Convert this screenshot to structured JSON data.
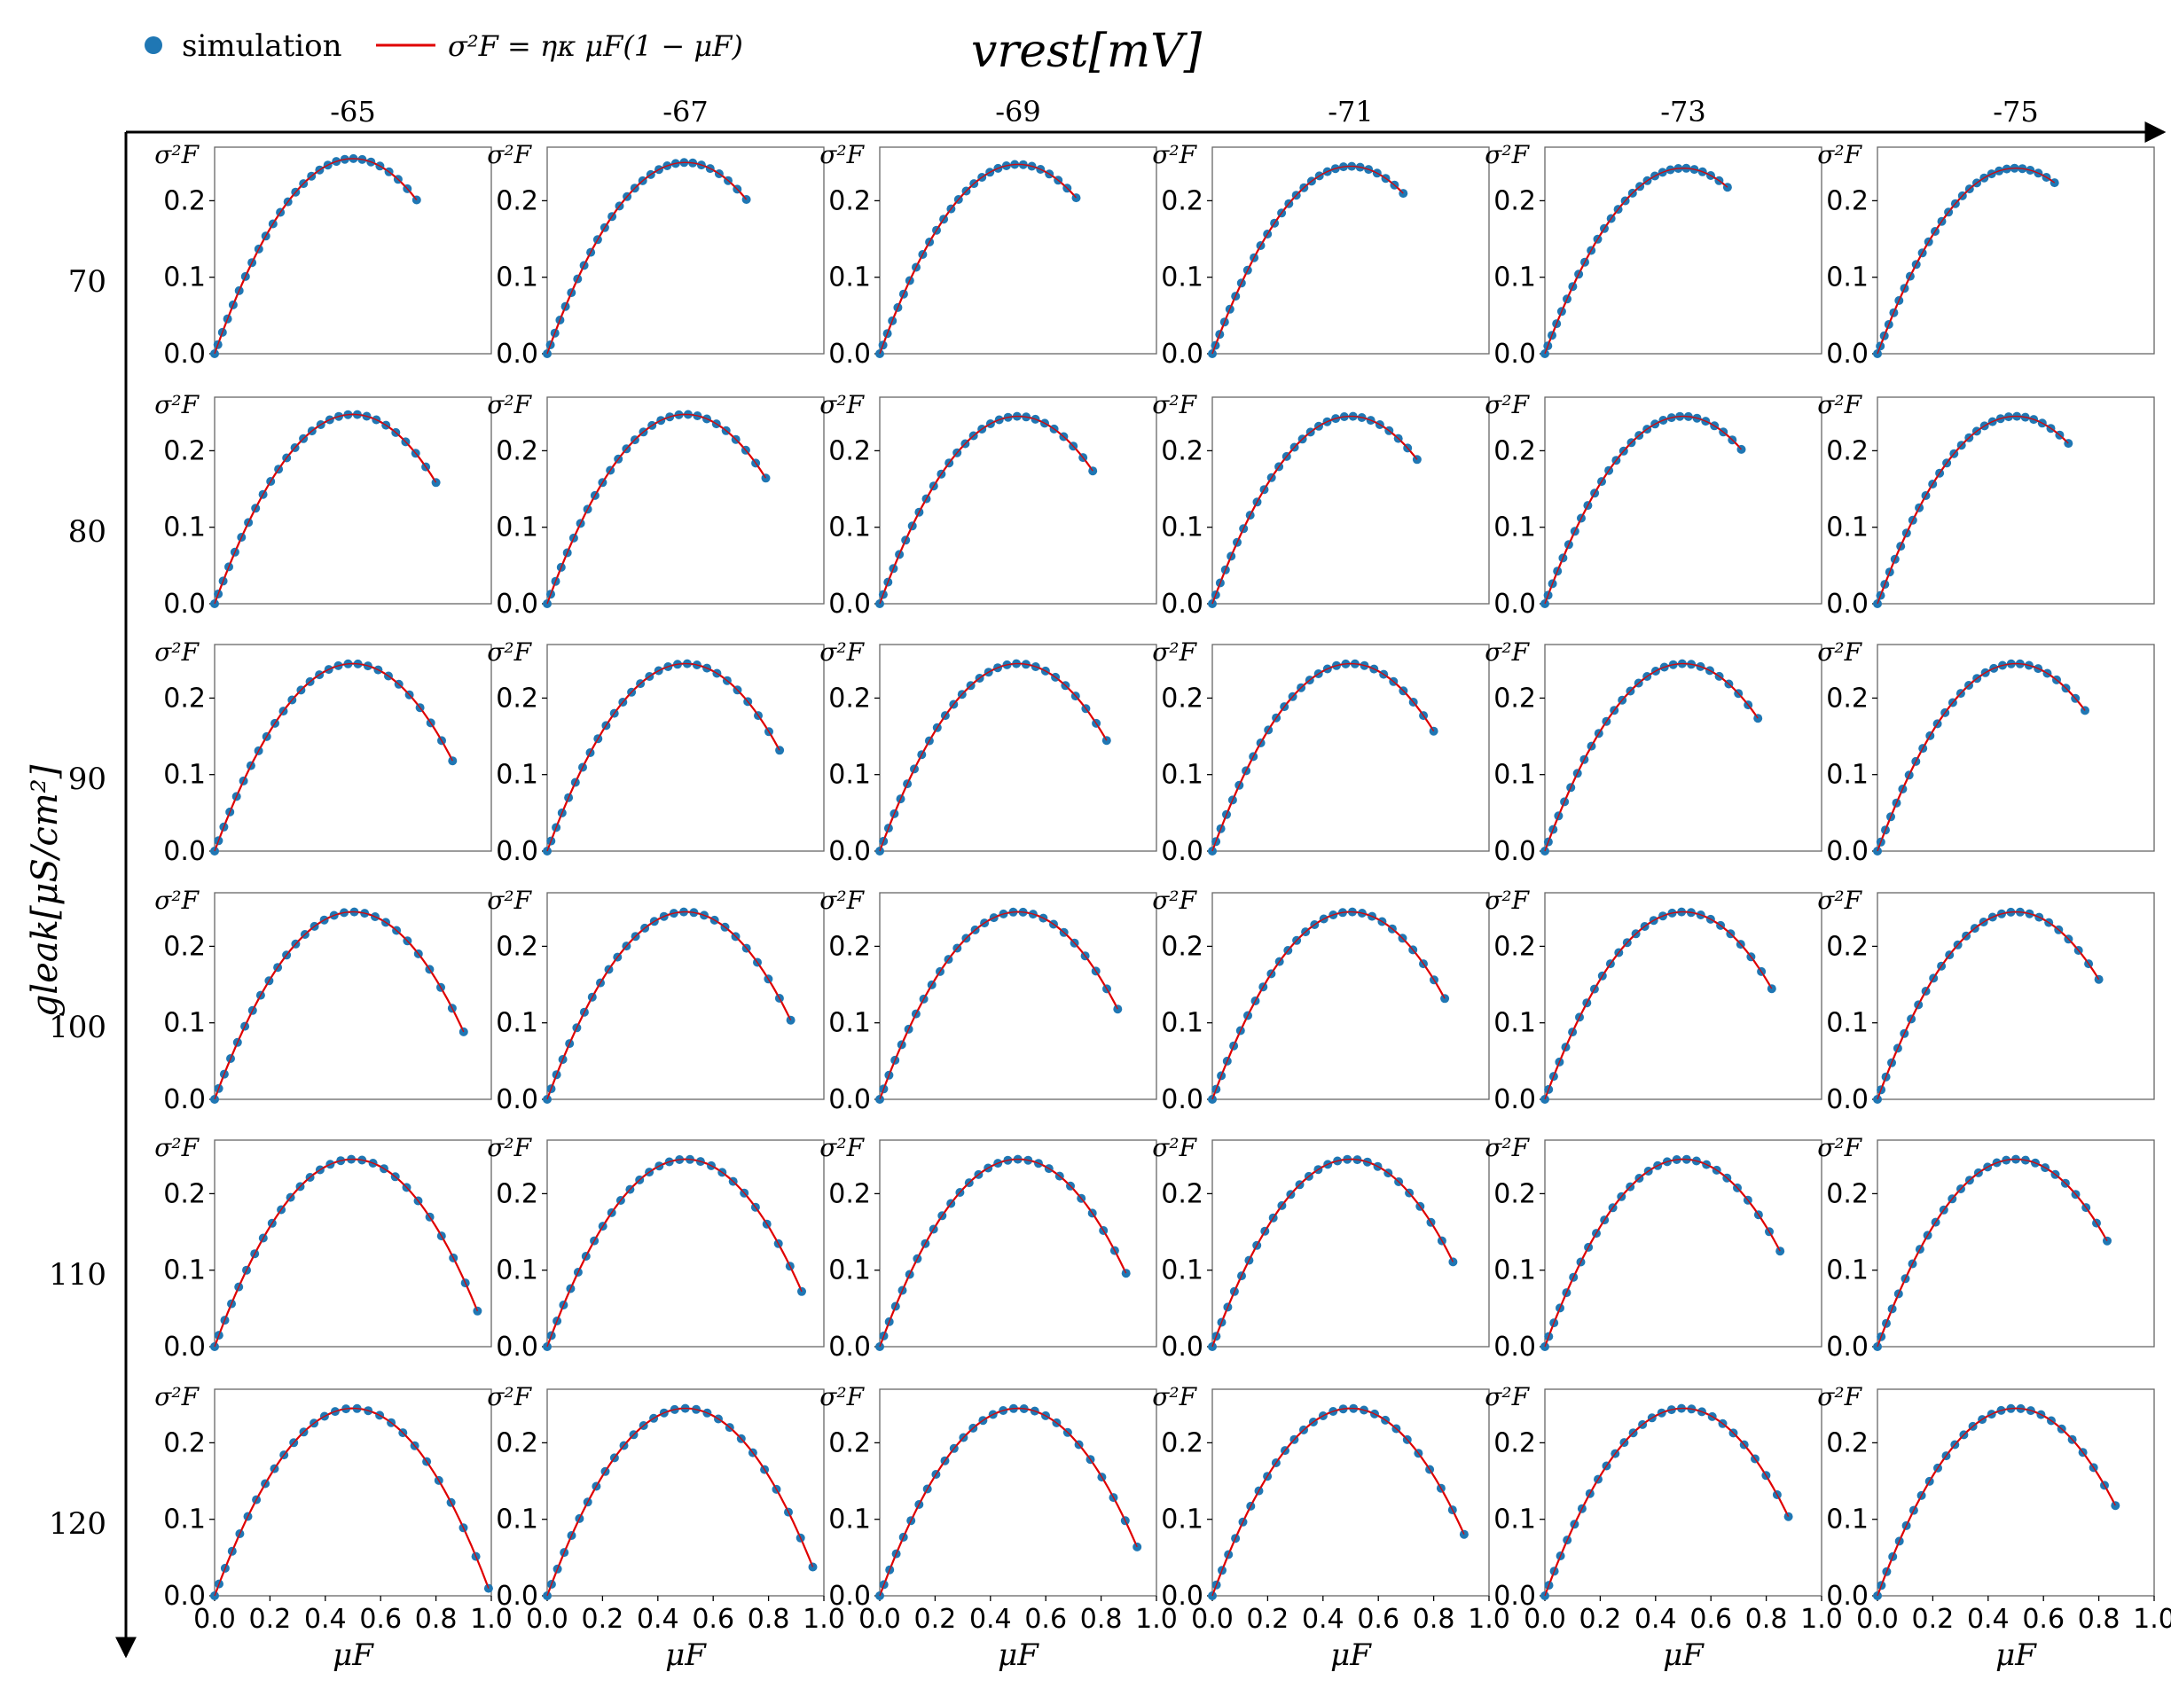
{
  "legend": {
    "marker_label": "simulation",
    "line_label": "σ²F = ηκ μF(1 − μF)",
    "marker_color": "#1f77b4",
    "line_color": "#e00000"
  },
  "top_axis": {
    "label": "vrest[mV]"
  },
  "left_axis": {
    "label": "gleak[μS/cm²]"
  },
  "chart_data": {
    "type": "scatter",
    "layout": "grid",
    "col_values": [
      "-65",
      "-67",
      "-69",
      "-71",
      "-73",
      "-75"
    ],
    "row_values": [
      "70",
      "80",
      "90",
      "100",
      "110",
      "120"
    ],
    "xlabel": "μF",
    "ylabel": "σ²F",
    "xlim": [
      0.0,
      1.0
    ],
    "ylim": [
      0.0,
      0.27
    ],
    "xticks": [
      "0.0",
      "0.2",
      "0.4",
      "0.6",
      "0.8",
      "1.0"
    ],
    "yticks": [
      "0.0",
      "0.1",
      "0.2"
    ],
    "fit": {
      "formula": "σ²F = ηκ μF(1 − μF)"
    },
    "mu_max": [
      [
        0.73,
        0.72,
        0.71,
        0.69,
        0.66,
        0.64
      ],
      [
        0.8,
        0.79,
        0.77,
        0.74,
        0.71,
        0.69
      ],
      [
        0.86,
        0.84,
        0.82,
        0.8,
        0.77,
        0.75
      ],
      [
        0.9,
        0.88,
        0.86,
        0.84,
        0.82,
        0.8
      ],
      [
        0.95,
        0.92,
        0.89,
        0.87,
        0.85,
        0.83
      ],
      [
        0.99,
        0.96,
        0.93,
        0.91,
        0.88,
        0.86
      ]
    ],
    "eta": [
      [
        1.02,
        1.0,
        0.99,
        0.98,
        0.97,
        0.97
      ],
      [
        0.99,
        0.99,
        0.98,
        0.98,
        0.98,
        0.98
      ],
      [
        0.98,
        0.98,
        0.98,
        0.98,
        0.98,
        0.98
      ],
      [
        0.98,
        0.98,
        0.98,
        0.98,
        0.98,
        0.98
      ],
      [
        0.98,
        0.98,
        0.98,
        0.98,
        0.98,
        0.98
      ],
      [
        0.98,
        0.98,
        0.98,
        0.98,
        0.98,
        0.98
      ]
    ],
    "points_per_panel": 28
  }
}
